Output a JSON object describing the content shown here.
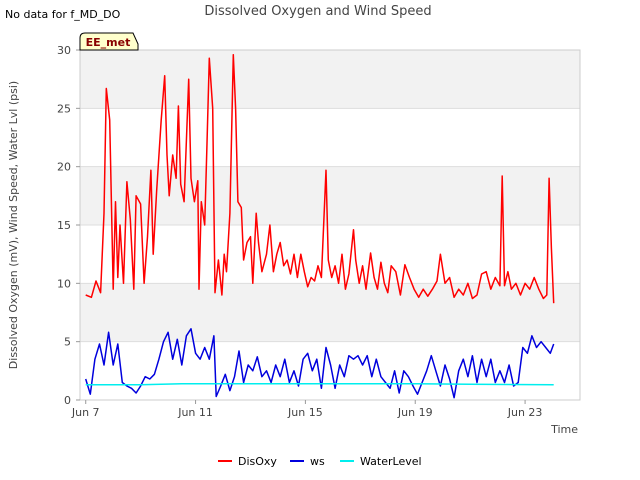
{
  "top_note": "No data for f_MD_DO",
  "chart_data": {
    "type": "line",
    "title": "Dissolved Oxygen and Wind Speed",
    "xlabel": "Time",
    "ylabel": "Dissolved Oxygen (mV), Wind Speed, Water Lvl (psi)",
    "badge": "EE_met",
    "xlim": [
      "2023-06-06T19:00",
      "2023-06-25T00:00"
    ],
    "ylim": [
      0,
      30
    ],
    "x_ticks": [
      {
        "date": "2023-06-07",
        "label": "Jun 7"
      },
      {
        "date": "2023-06-11",
        "label": "Jun 11"
      },
      {
        "date": "2023-06-15",
        "label": "Jun 15"
      },
      {
        "date": "2023-06-19",
        "label": "Jun 19"
      },
      {
        "date": "2023-06-23",
        "label": "Jun 23"
      }
    ],
    "y_ticks": [
      0,
      5,
      10,
      15,
      20,
      25,
      30
    ],
    "grid": true,
    "legend_position": "bottom",
    "series": [
      {
        "name": "DisOxy",
        "color": "#ff0000",
        "points": [
          [
            "2023-06-07T00:00",
            9.0
          ],
          [
            "2023-06-07T05:00",
            8.8
          ],
          [
            "2023-06-07T09:00",
            10.2
          ],
          [
            "2023-06-07T13:00",
            9.2
          ],
          [
            "2023-06-07T16:00",
            16.0
          ],
          [
            "2023-06-07T18:00",
            26.7
          ],
          [
            "2023-06-07T21:00",
            24.0
          ],
          [
            "2023-06-08T00:00",
            9.5
          ],
          [
            "2023-06-08T02:00",
            17.0
          ],
          [
            "2023-06-08T04:00",
            10.5
          ],
          [
            "2023-06-08T06:00",
            15.0
          ],
          [
            "2023-06-08T09:00",
            10.0
          ],
          [
            "2023-06-08T12:00",
            18.7
          ],
          [
            "2023-06-08T15:00",
            15.5
          ],
          [
            "2023-06-08T18:00",
            9.5
          ],
          [
            "2023-06-08T20:00",
            17.5
          ],
          [
            "2023-06-09T00:00",
            16.8
          ],
          [
            "2023-06-09T03:00",
            10.0
          ],
          [
            "2023-06-09T06:00",
            14.0
          ],
          [
            "2023-06-09T09:00",
            19.7
          ],
          [
            "2023-06-09T11:00",
            12.5
          ],
          [
            "2023-06-09T14:00",
            18.0
          ],
          [
            "2023-06-09T18:00",
            24.0
          ],
          [
            "2023-06-09T21:00",
            27.8
          ],
          [
            "2023-06-09T23:00",
            21.0
          ],
          [
            "2023-06-10T01:00",
            17.5
          ],
          [
            "2023-06-10T04:00",
            21.0
          ],
          [
            "2023-06-10T07:00",
            19.0
          ],
          [
            "2023-06-10T09:00",
            25.2
          ],
          [
            "2023-06-10T11:00",
            18.5
          ],
          [
            "2023-06-10T14:00",
            17.0
          ],
          [
            "2023-06-10T18:00",
            27.5
          ],
          [
            "2023-06-10T20:00",
            19.0
          ],
          [
            "2023-06-10T23:00",
            17.0
          ],
          [
            "2023-06-11T02:00",
            18.8
          ],
          [
            "2023-06-11T03:00",
            9.5
          ],
          [
            "2023-06-11T05:00",
            17.0
          ],
          [
            "2023-06-11T08:00",
            15.0
          ],
          [
            "2023-06-11T10:00",
            22.0
          ],
          [
            "2023-06-11T12:00",
            29.3
          ],
          [
            "2023-06-11T15:00",
            25.0
          ],
          [
            "2023-06-11T17:00",
            9.2
          ],
          [
            "2023-06-11T20:00",
            12.0
          ],
          [
            "2023-06-11T23:00",
            9.0
          ],
          [
            "2023-06-12T01:00",
            12.5
          ],
          [
            "2023-06-12T03:00",
            11.0
          ],
          [
            "2023-06-12T06:00",
            16.0
          ],
          [
            "2023-06-12T09:00",
            29.6
          ],
          [
            "2023-06-12T11:00",
            25.0
          ],
          [
            "2023-06-12T13:00",
            17.0
          ],
          [
            "2023-06-12T16:00",
            16.5
          ],
          [
            "2023-06-12T18:00",
            12.0
          ],
          [
            "2023-06-12T21:00",
            13.5
          ],
          [
            "2023-06-13T00:00",
            14.0
          ],
          [
            "2023-06-13T02:00",
            10.0
          ],
          [
            "2023-06-13T05:00",
            16.0
          ],
          [
            "2023-06-13T07:00",
            13.5
          ],
          [
            "2023-06-13T10:00",
            11.0
          ],
          [
            "2023-06-13T14:00",
            12.5
          ],
          [
            "2023-06-13T17:00",
            15.0
          ],
          [
            "2023-06-13T20:00",
            11.0
          ],
          [
            "2023-06-13T23:00",
            12.5
          ],
          [
            "2023-06-14T02:00",
            13.5
          ],
          [
            "2023-06-14T05:00",
            11.5
          ],
          [
            "2023-06-14T08:00",
            12.0
          ],
          [
            "2023-06-14T11:00",
            10.8
          ],
          [
            "2023-06-14T14:00",
            12.5
          ],
          [
            "2023-06-14T17:00",
            10.5
          ],
          [
            "2023-06-14T20:00",
            12.5
          ],
          [
            "2023-06-14T23:00",
            11.0
          ],
          [
            "2023-06-15T02:00",
            9.7
          ],
          [
            "2023-06-15T05:00",
            10.5
          ],
          [
            "2023-06-15T08:00",
            10.2
          ],
          [
            "2023-06-15T11:00",
            11.5
          ],
          [
            "2023-06-15T14:00",
            10.5
          ],
          [
            "2023-06-15T18:00",
            19.7
          ],
          [
            "2023-06-15T20:00",
            12.0
          ],
          [
            "2023-06-15T23:00",
            10.5
          ],
          [
            "2023-06-16T02:00",
            11.5
          ],
          [
            "2023-06-16T05:00",
            10.0
          ],
          [
            "2023-06-16T08:00",
            12.5
          ],
          [
            "2023-06-16T11:00",
            9.5
          ],
          [
            "2023-06-16T14:00",
            10.8
          ],
          [
            "2023-06-16T18:00",
            14.6
          ],
          [
            "2023-06-16T20:00",
            12.0
          ],
          [
            "2023-06-16T23:00",
            10.0
          ],
          [
            "2023-06-17T02:00",
            11.5
          ],
          [
            "2023-06-17T05:00",
            9.5
          ],
          [
            "2023-06-17T09:00",
            12.6
          ],
          [
            "2023-06-17T12:00",
            10.5
          ],
          [
            "2023-06-17T15:00",
            9.5
          ],
          [
            "2023-06-17T18:00",
            11.8
          ],
          [
            "2023-06-17T21:00",
            10.0
          ],
          [
            "2023-06-18T00:00",
            9.2
          ],
          [
            "2023-06-18T03:00",
            11.5
          ],
          [
            "2023-06-18T07:00",
            11.0
          ],
          [
            "2023-06-18T11:00",
            9.0
          ],
          [
            "2023-06-18T15:00",
            11.6
          ],
          [
            "2023-06-18T19:00",
            10.5
          ],
          [
            "2023-06-18T23:00",
            9.5
          ],
          [
            "2023-06-19T03:00",
            8.8
          ],
          [
            "2023-06-19T07:00",
            9.5
          ],
          [
            "2023-06-19T11:00",
            8.9
          ],
          [
            "2023-06-19T15:00",
            9.5
          ],
          [
            "2023-06-19T19:00",
            10.2
          ],
          [
            "2023-06-19T22:00",
            12.5
          ],
          [
            "2023-06-20T02:00",
            10.0
          ],
          [
            "2023-06-20T06:00",
            10.5
          ],
          [
            "2023-06-20T10:00",
            8.8
          ],
          [
            "2023-06-20T14:00",
            9.5
          ],
          [
            "2023-06-20T18:00",
            9.0
          ],
          [
            "2023-06-20T22:00",
            10.0
          ],
          [
            "2023-06-21T02:00",
            8.7
          ],
          [
            "2023-06-21T06:00",
            9.0
          ],
          [
            "2023-06-21T10:00",
            10.8
          ],
          [
            "2023-06-21T14:00",
            11.0
          ],
          [
            "2023-06-21T18:00",
            9.5
          ],
          [
            "2023-06-21T22:00",
            10.5
          ],
          [
            "2023-06-22T02:00",
            9.8
          ],
          [
            "2023-06-22T04:00",
            19.2
          ],
          [
            "2023-06-22T06:00",
            9.8
          ],
          [
            "2023-06-22T09:00",
            11.0
          ],
          [
            "2023-06-22T12:00",
            9.5
          ],
          [
            "2023-06-22T16:00",
            10.0
          ],
          [
            "2023-06-22T20:00",
            9.0
          ],
          [
            "2023-06-23T00:00",
            10.0
          ],
          [
            "2023-06-23T04:00",
            9.5
          ],
          [
            "2023-06-23T08:00",
            10.5
          ],
          [
            "2023-06-23T12:00",
            9.5
          ],
          [
            "2023-06-23T16:00",
            8.7
          ],
          [
            "2023-06-23T19:00",
            9.0
          ],
          [
            "2023-06-23T21:00",
            19.0
          ],
          [
            "2023-06-23T23:00",
            13.0
          ],
          [
            "2023-06-24T01:00",
            8.3
          ]
        ]
      },
      {
        "name": "ws",
        "color": "#0000dd",
        "points": [
          [
            "2023-06-07T00:00",
            1.8
          ],
          [
            "2023-06-07T04:00",
            0.5
          ],
          [
            "2023-06-07T08:00",
            3.5
          ],
          [
            "2023-06-07T12:00",
            4.8
          ],
          [
            "2023-06-07T16:00",
            3.0
          ],
          [
            "2023-06-07T20:00",
            5.8
          ],
          [
            "2023-06-08T00:00",
            3.0
          ],
          [
            "2023-06-08T04:00",
            4.8
          ],
          [
            "2023-06-08T08:00",
            1.5
          ],
          [
            "2023-06-08T12:00",
            1.2
          ],
          [
            "2023-06-08T16:00",
            1.0
          ],
          [
            "2023-06-08T20:00",
            0.6
          ],
          [
            "2023-06-09T00:00",
            1.2
          ],
          [
            "2023-06-09T04:00",
            2.0
          ],
          [
            "2023-06-09T08:00",
            1.8
          ],
          [
            "2023-06-09T12:00",
            2.2
          ],
          [
            "2023-06-09T16:00",
            3.5
          ],
          [
            "2023-06-09T20:00",
            5.0
          ],
          [
            "2023-06-10T00:00",
            5.8
          ],
          [
            "2023-06-10T04:00",
            3.5
          ],
          [
            "2023-06-10T08:00",
            5.2
          ],
          [
            "2023-06-10T12:00",
            3.0
          ],
          [
            "2023-06-10T16:00",
            5.5
          ],
          [
            "2023-06-10T20:00",
            6.1
          ],
          [
            "2023-06-11T00:00",
            4.0
          ],
          [
            "2023-06-11T04:00",
            3.5
          ],
          [
            "2023-06-11T08:00",
            4.5
          ],
          [
            "2023-06-11T12:00",
            3.5
          ],
          [
            "2023-06-11T16:00",
            5.5
          ],
          [
            "2023-06-11T18:00",
            0.3
          ],
          [
            "2023-06-11T22:00",
            1.2
          ],
          [
            "2023-06-12T02:00",
            2.2
          ],
          [
            "2023-06-12T06:00",
            0.8
          ],
          [
            "2023-06-12T10:00",
            2.0
          ],
          [
            "2023-06-12T14:00",
            4.2
          ],
          [
            "2023-06-12T18:00",
            1.5
          ],
          [
            "2023-06-12T22:00",
            3.0
          ],
          [
            "2023-06-13T02:00",
            2.5
          ],
          [
            "2023-06-13T06:00",
            3.7
          ],
          [
            "2023-06-13T10:00",
            2.0
          ],
          [
            "2023-06-13T14:00",
            2.5
          ],
          [
            "2023-06-13T18:00",
            1.5
          ],
          [
            "2023-06-13T22:00",
            3.0
          ],
          [
            "2023-06-14T02:00",
            2.0
          ],
          [
            "2023-06-14T06:00",
            3.5
          ],
          [
            "2023-06-14T10:00",
            1.5
          ],
          [
            "2023-06-14T14:00",
            2.5
          ],
          [
            "2023-06-14T18:00",
            1.2
          ],
          [
            "2023-06-14T22:00",
            3.5
          ],
          [
            "2023-06-15T02:00",
            4.0
          ],
          [
            "2023-06-15T06:00",
            2.5
          ],
          [
            "2023-06-15T10:00",
            3.5
          ],
          [
            "2023-06-15T14:00",
            1.0
          ],
          [
            "2023-06-15T18:00",
            4.5
          ],
          [
            "2023-06-15T22:00",
            3.0
          ],
          [
            "2023-06-16T02:00",
            1.0
          ],
          [
            "2023-06-16T06:00",
            3.0
          ],
          [
            "2023-06-16T10:00",
            2.0
          ],
          [
            "2023-06-16T14:00",
            3.8
          ],
          [
            "2023-06-16T18:00",
            3.5
          ],
          [
            "2023-06-16T22:00",
            3.8
          ],
          [
            "2023-06-17T02:00",
            3.0
          ],
          [
            "2023-06-17T06:00",
            3.8
          ],
          [
            "2023-06-17T10:00",
            2.0
          ],
          [
            "2023-06-17T14:00",
            3.5
          ],
          [
            "2023-06-17T18:00",
            2.0
          ],
          [
            "2023-06-17T22:00",
            1.5
          ],
          [
            "2023-06-18T02:00",
            1.0
          ],
          [
            "2023-06-18T06:00",
            2.5
          ],
          [
            "2023-06-18T10:00",
            0.6
          ],
          [
            "2023-06-18T14:00",
            2.5
          ],
          [
            "2023-06-18T18:00",
            2.0
          ],
          [
            "2023-06-18T22:00",
            1.2
          ],
          [
            "2023-06-19T02:00",
            0.5
          ],
          [
            "2023-06-19T06:00",
            1.5
          ],
          [
            "2023-06-19T10:00",
            2.5
          ],
          [
            "2023-06-19T14:00",
            3.8
          ],
          [
            "2023-06-19T18:00",
            2.5
          ],
          [
            "2023-06-19T22:00",
            1.2
          ],
          [
            "2023-06-20T02:00",
            3.0
          ],
          [
            "2023-06-20T06:00",
            1.8
          ],
          [
            "2023-06-20T10:00",
            0.2
          ],
          [
            "2023-06-20T14:00",
            2.5
          ],
          [
            "2023-06-20T18:00",
            3.5
          ],
          [
            "2023-06-20T22:00",
            2.0
          ],
          [
            "2023-06-21T02:00",
            3.8
          ],
          [
            "2023-06-21T06:00",
            1.5
          ],
          [
            "2023-06-21T10:00",
            3.5
          ],
          [
            "2023-06-21T14:00",
            2.0
          ],
          [
            "2023-06-21T18:00",
            3.5
          ],
          [
            "2023-06-21T22:00",
            1.5
          ],
          [
            "2023-06-22T02:00",
            2.5
          ],
          [
            "2023-06-22T06:00",
            1.5
          ],
          [
            "2023-06-22T10:00",
            3.0
          ],
          [
            "2023-06-22T14:00",
            1.2
          ],
          [
            "2023-06-22T18:00",
            1.5
          ],
          [
            "2023-06-22T22:00",
            4.5
          ],
          [
            "2023-06-23T02:00",
            4.0
          ],
          [
            "2023-06-23T06:00",
            5.5
          ],
          [
            "2023-06-23T10:00",
            4.5
          ],
          [
            "2023-06-23T14:00",
            5.0
          ],
          [
            "2023-06-23T18:00",
            4.5
          ],
          [
            "2023-06-23T22:00",
            4.0
          ],
          [
            "2023-06-24T01:00",
            4.8
          ]
        ]
      },
      {
        "name": "WaterLevel",
        "color": "#00eeee",
        "points": [
          [
            "2023-06-07T00:00",
            1.3
          ],
          [
            "2023-06-09T00:00",
            1.3
          ],
          [
            "2023-06-10T12:00",
            1.4
          ],
          [
            "2023-06-13T00:00",
            1.4
          ],
          [
            "2023-06-16T00:00",
            1.4
          ],
          [
            "2023-06-19T00:00",
            1.4
          ],
          [
            "2023-06-21T00:00",
            1.35
          ],
          [
            "2023-06-24T01:00",
            1.3
          ]
        ]
      }
    ]
  }
}
